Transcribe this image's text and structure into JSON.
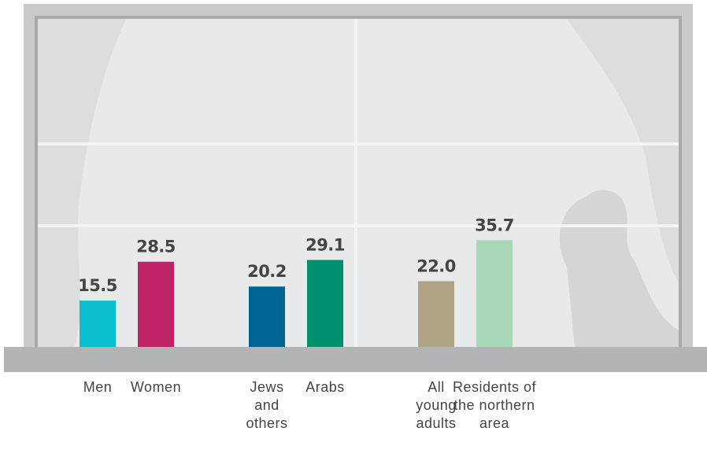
{
  "chart_data": {
    "type": "bar",
    "categories": [
      "Men",
      "Women",
      "Jews and others",
      "Arabs",
      "All young adults",
      "Residents of the northern area"
    ],
    "values": [
      15.5,
      28.5,
      20.2,
      29.1,
      22.0,
      35.7
    ],
    "value_labels": [
      "15.5",
      "28.5",
      "20.2",
      "29.1",
      "22.0",
      "35.7"
    ],
    "colors": [
      "#0bbfcf",
      "#be2366",
      "#006494",
      "#00906e",
      "#b0a486",
      "#a9d8b9"
    ]
  }
}
